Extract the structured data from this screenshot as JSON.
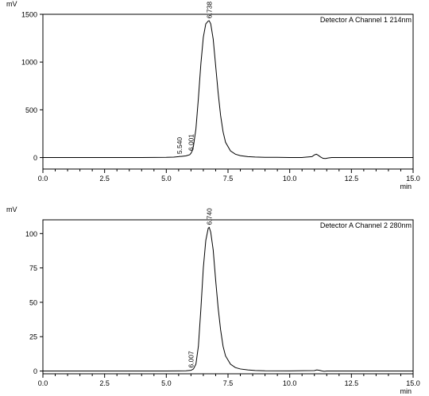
{
  "chart_data": [
    {
      "type": "line",
      "title": "Detector A Channel 1 214nm",
      "ylabel": "mV",
      "xlabel": "min",
      "xlim": [
        0.0,
        15.0
      ],
      "ylim": [
        -120,
        1500
      ],
      "x_ticks": [
        "0.0",
        "2.5",
        "5.0",
        "7.5",
        "10.0",
        "12.5",
        "15.0"
      ],
      "x_tick_values": [
        0,
        2.5,
        5,
        7.5,
        10,
        12.5,
        15
      ],
      "y_ticks": [
        "0",
        "500",
        "1000",
        "1500"
      ],
      "y_tick_values": [
        0,
        500,
        1000,
        1500
      ],
      "grid": false,
      "series": [
        {
          "x": [
            0,
            1,
            2,
            3,
            4,
            5,
            5.3,
            5.5,
            5.54,
            5.6,
            5.8,
            5.95,
            6.001,
            6.05,
            6.1,
            6.2,
            6.3,
            6.4,
            6.5,
            6.6,
            6.7,
            6.738,
            6.8,
            6.9,
            7.0,
            7.1,
            7.2,
            7.3,
            7.4,
            7.6,
            7.8,
            8.0,
            8.3,
            8.6,
            9.0,
            9.5,
            10.0,
            10.5,
            10.9,
            11.0,
            11.08,
            11.15,
            11.25,
            11.35,
            11.45,
            11.55,
            11.7,
            12.0,
            13.0,
            14.0,
            15.0
          ],
          "values": [
            0,
            0,
            0,
            0,
            0,
            2,
            5,
            10,
            12,
            12,
            18,
            30,
            45,
            70,
            120,
            300,
            620,
            980,
            1260,
            1400,
            1430,
            1432,
            1400,
            1240,
            960,
            680,
            440,
            270,
            160,
            70,
            35,
            20,
            10,
            6,
            3,
            2,
            1,
            1,
            10,
            28,
            35,
            25,
            6,
            -8,
            -10,
            -5,
            0,
            0,
            0,
            0,
            0
          ]
        }
      ],
      "peak_labels": [
        {
          "x": 5.54,
          "y": 12,
          "text": "5.540"
        },
        {
          "x": 6.001,
          "y": 45,
          "text": "6.001"
        },
        {
          "x": 6.738,
          "y": 1432,
          "text": "6.738"
        }
      ]
    },
    {
      "type": "line",
      "title": "Detector A Channel 2 280nm",
      "ylabel": "mV",
      "xlabel": "min",
      "xlim": [
        0.0,
        15.0
      ],
      "ylim": [
        -2,
        110
      ],
      "x_ticks": [
        "0.0",
        "2.5",
        "5.0",
        "7.5",
        "10.0",
        "12.5",
        "15.0"
      ],
      "x_tick_values": [
        0,
        2.5,
        5,
        7.5,
        10,
        12.5,
        15
      ],
      "y_ticks": [
        "0",
        "25",
        "50",
        "75",
        "100"
      ],
      "y_tick_values": [
        0,
        25,
        50,
        75,
        100
      ],
      "grid": false,
      "series": [
        {
          "x": [
            0,
            1,
            2,
            3,
            4,
            5,
            5.5,
            5.8,
            6.0,
            6.007,
            6.1,
            6.2,
            6.3,
            6.4,
            6.5,
            6.6,
            6.7,
            6.74,
            6.8,
            6.9,
            7.0,
            7.1,
            7.2,
            7.3,
            7.4,
            7.6,
            7.8,
            8.0,
            8.3,
            8.6,
            9.0,
            10.0,
            11.0,
            11.1,
            11.2,
            11.3,
            11.4,
            11.5,
            12.0,
            13.0,
            14.0,
            15.0
          ],
          "values": [
            0,
            0,
            0,
            0,
            0,
            0,
            0.1,
            0.2,
            0.5,
            0.6,
            1.5,
            5,
            18,
            45,
            75,
            95,
            104,
            104.5,
            101,
            88,
            66,
            46,
            30,
            18,
            11,
            5,
            2.5,
            1.5,
            0.8,
            0.4,
            0.2,
            0.1,
            0.3,
            0.8,
            0.5,
            0.1,
            -0.2,
            0,
            0,
            0,
            0,
            0
          ]
        }
      ],
      "peak_labels": [
        {
          "x": 6.007,
          "y": 0.6,
          "text": "6.007"
        },
        {
          "x": 6.74,
          "y": 104.5,
          "text": "6.740"
        }
      ]
    }
  ]
}
